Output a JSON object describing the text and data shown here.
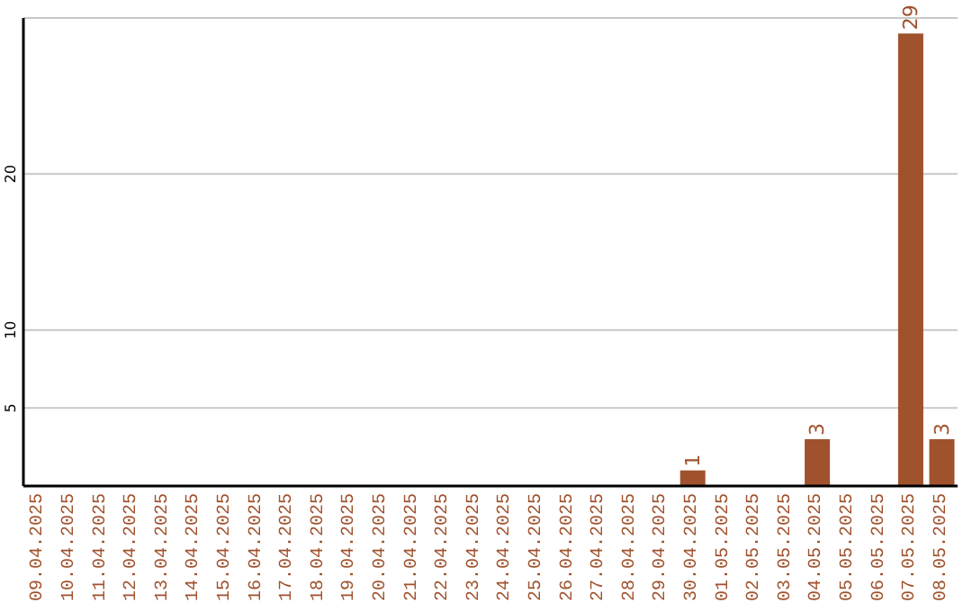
{
  "chart_data": {
    "type": "bar",
    "categories": [
      "09.04.2025",
      "10.04.2025",
      "11.04.2025",
      "12.04.2025",
      "13.04.2025",
      "14.04.2025",
      "15.04.2025",
      "16.04.2025",
      "17.04.2025",
      "18.04.2025",
      "19.04.2025",
      "20.04.2025",
      "21.04.2025",
      "22.04.2025",
      "23.04.2025",
      "24.04.2025",
      "25.04.2025",
      "26.04.2025",
      "27.04.2025",
      "28.04.2025",
      "29.04.2025",
      "30.04.2025",
      "01.05.2025",
      "02.05.2025",
      "03.05.2025",
      "04.05.2025",
      "05.05.2025",
      "06.05.2025",
      "07.05.2025",
      "08.05.2025"
    ],
    "values": [
      0,
      0,
      0,
      0,
      0,
      0,
      0,
      0,
      0,
      0,
      0,
      0,
      0,
      0,
      0,
      0,
      0,
      0,
      0,
      0,
      0,
      1,
      0,
      0,
      0,
      3,
      0,
      0,
      29,
      3
    ],
    "value_labels": [
      null,
      null,
      null,
      null,
      null,
      null,
      null,
      null,
      null,
      null,
      null,
      null,
      null,
      null,
      null,
      null,
      null,
      null,
      null,
      null,
      null,
      "1",
      null,
      null,
      null,
      "3",
      null,
      null,
      "29",
      "3"
    ],
    "color": "#a0522d",
    "ylim": [
      0,
      30
    ],
    "yticks": [
      5,
      10,
      20
    ],
    "grid": "y"
  }
}
